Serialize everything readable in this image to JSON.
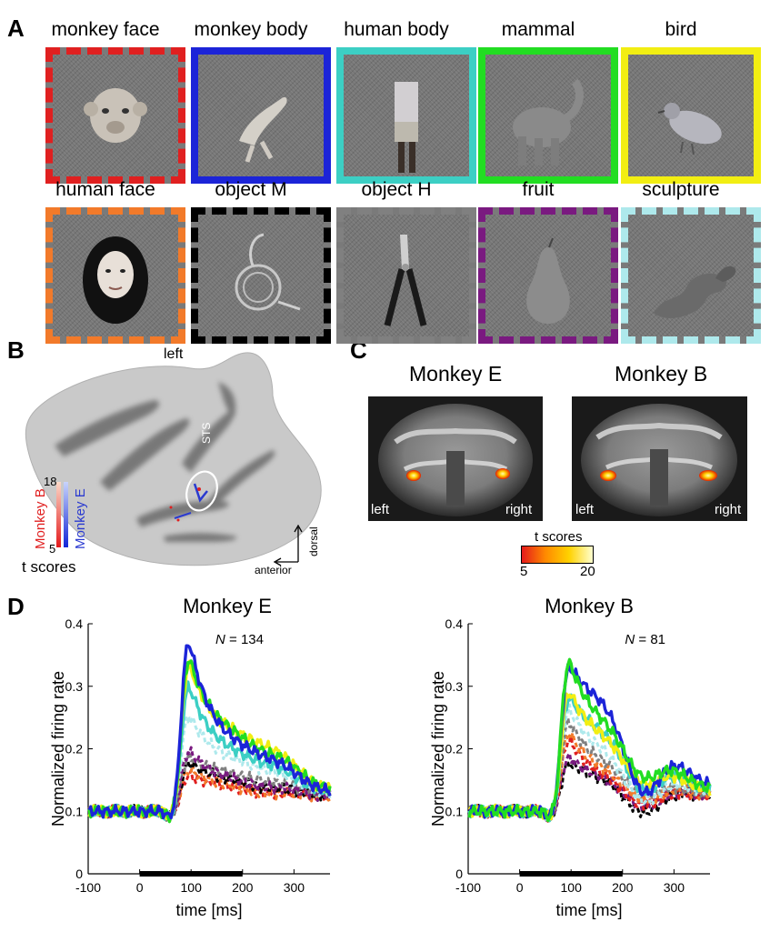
{
  "panels": {
    "a": "A",
    "b": "B",
    "c": "C",
    "d": "D"
  },
  "stimuli": [
    {
      "label": "monkey face",
      "color": "#e02020",
      "dashed": true,
      "icon": "monkey-face-icon"
    },
    {
      "label": "monkey body",
      "color": "#1c24d8",
      "dashed": false,
      "icon": "monkey-body-icon"
    },
    {
      "label": "human body",
      "color": "#3ccfc4",
      "dashed": false,
      "icon": "human-body-icon"
    },
    {
      "label": "mammal",
      "color": "#22dd22",
      "dashed": false,
      "icon": "elephant-icon"
    },
    {
      "label": "bird",
      "color": "#f2ee12",
      "dashed": false,
      "icon": "pigeon-icon"
    },
    {
      "label": "human face",
      "color": "#f27a2a",
      "dashed": true,
      "icon": "human-face-icon"
    },
    {
      "label": "object M",
      "color": "#000000",
      "dashed": true,
      "icon": "french-horn-icon"
    },
    {
      "label": "object H",
      "color": "#808080",
      "dashed": true,
      "icon": "pliers-icon"
    },
    {
      "label": "fruit",
      "color": "#7a1a80",
      "dashed": true,
      "icon": "pear-icon"
    },
    {
      "label": "sculpture",
      "color": "#aee9ec",
      "dashed": true,
      "icon": "sculpture-icon"
    }
  ],
  "panel_b": {
    "hemisphere_label": "left",
    "roi_label": "STS",
    "colorbar_b_label": "Monkey B",
    "colorbar_e_label": "Monkey E",
    "colorbar_max": "18",
    "colorbar_min": "5",
    "colorbar_title": "t scores",
    "axis_anterior": "anterior",
    "axis_dorsal": "dorsal"
  },
  "panel_c": {
    "monkey_e_title": "Monkey E",
    "monkey_b_title": "Monkey B",
    "left_label": "left",
    "right_label": "right",
    "colorbar_title": "t scores",
    "colorbar_min": "5",
    "colorbar_max": "20"
  },
  "chart_data": [
    {
      "type": "line",
      "title": "Monkey E",
      "n_label": "N = 134",
      "n_symbol": "N",
      "n_value": "= 134",
      "xlabel": "time [ms]",
      "ylabel": "Normalized firing rate",
      "xlim": [
        -100,
        370
      ],
      "ylim": [
        0,
        0.4
      ],
      "xticks": [
        -100,
        0,
        100,
        200,
        300
      ],
      "yticks": [
        0,
        0.1,
        0.2,
        0.3,
        0.4
      ],
      "stimulus_bar": [
        0,
        200
      ],
      "series": [
        {
          "name": "monkey body",
          "color": "#1c24d8",
          "peak": 0.385,
          "plateau": 0.2,
          "late": 0.19,
          "dashed": false
        },
        {
          "name": "mammal",
          "color": "#22dd22",
          "peak": 0.355,
          "plateau": 0.22,
          "late": 0.2,
          "dashed": false
        },
        {
          "name": "bird",
          "color": "#f2ee12",
          "peak": 0.345,
          "plateau": 0.22,
          "late": 0.21,
          "dashed": false
        },
        {
          "name": "human body",
          "color": "#3ccfc4",
          "peak": 0.31,
          "plateau": 0.19,
          "late": 0.18,
          "dashed": false
        },
        {
          "name": "sculpture",
          "color": "#aee9ec",
          "peak": 0.26,
          "plateau": 0.18,
          "late": 0.17,
          "dashed": true
        },
        {
          "name": "fruit",
          "color": "#7a1a80",
          "peak": 0.2,
          "plateau": 0.15,
          "late": 0.14,
          "dashed": true
        },
        {
          "name": "object H",
          "color": "#808080",
          "peak": 0.19,
          "plateau": 0.16,
          "late": 0.15,
          "dashed": true
        },
        {
          "name": "object M",
          "color": "#000000",
          "peak": 0.18,
          "plateau": 0.15,
          "late": 0.14,
          "dashed": true
        },
        {
          "name": "human face",
          "color": "#f27a2a",
          "peak": 0.17,
          "plateau": 0.14,
          "late": 0.13,
          "dashed": true
        },
        {
          "name": "monkey face",
          "color": "#e02020",
          "peak": 0.16,
          "plateau": 0.14,
          "late": 0.13,
          "dashed": true
        }
      ]
    },
    {
      "type": "line",
      "title": "Monkey B",
      "n_label": "N = 81",
      "n_symbol": "N",
      "n_value": "= 81",
      "xlabel": "time [ms]",
      "ylabel": "Normalized firing rate",
      "xlim": [
        -100,
        370
      ],
      "ylim": [
        0,
        0.4
      ],
      "xticks": [
        -100,
        0,
        100,
        200,
        300
      ],
      "yticks": [
        0,
        0.1,
        0.2,
        0.3,
        0.4
      ],
      "stimulus_bar": [
        0,
        200
      ],
      "series": [
        {
          "name": "mammal",
          "color": "#22dd22",
          "peak": 0.35,
          "plateau": 0.23,
          "late": 0.16,
          "dashed": false
        },
        {
          "name": "monkey body",
          "color": "#1c24d8",
          "peak": 0.34,
          "plateau": 0.27,
          "late": 0.14,
          "dashed": false
        },
        {
          "name": "bird",
          "color": "#f2ee12",
          "peak": 0.3,
          "plateau": 0.21,
          "late": 0.15,
          "dashed": false
        },
        {
          "name": "human body",
          "color": "#3ccfc4",
          "peak": 0.29,
          "plateau": 0.22,
          "late": 0.14,
          "dashed": false
        },
        {
          "name": "sculpture",
          "color": "#aee9ec",
          "peak": 0.27,
          "plateau": 0.19,
          "late": 0.12,
          "dashed": true
        },
        {
          "name": "object H",
          "color": "#808080",
          "peak": 0.25,
          "plateau": 0.17,
          "late": 0.13,
          "dashed": true
        },
        {
          "name": "human face",
          "color": "#f27a2a",
          "peak": 0.23,
          "plateau": 0.16,
          "late": 0.12,
          "dashed": true
        },
        {
          "name": "monkey face",
          "color": "#e02020",
          "peak": 0.22,
          "plateau": 0.15,
          "late": 0.11,
          "dashed": true
        },
        {
          "name": "fruit",
          "color": "#7a1a80",
          "peak": 0.19,
          "plateau": 0.15,
          "late": 0.11,
          "dashed": true
        },
        {
          "name": "object M",
          "color": "#000000",
          "peak": 0.18,
          "plateau": 0.15,
          "late": 0.1,
          "dashed": true
        }
      ]
    }
  ]
}
